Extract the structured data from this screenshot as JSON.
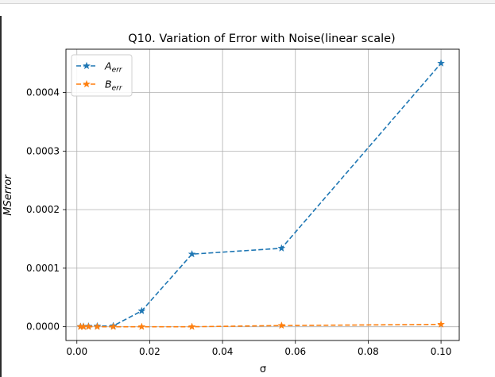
{
  "chart_data": {
    "type": "line",
    "title": "Q10. Variation of Error with Noise(linear scale)",
    "xlabel": "σ",
    "ylabel": "MSerror",
    "xlim": [
      -0.003,
      0.105
    ],
    "ylim": [
      -2.35e-05,
      0.000474
    ],
    "xticks": [
      0.0,
      0.02,
      0.04,
      0.06,
      0.08,
      0.1
    ],
    "xtick_labels": [
      "0.00",
      "0.02",
      "0.04",
      "0.06",
      "0.08",
      "0.10"
    ],
    "yticks": [
      0.0,
      0.0001,
      0.0002,
      0.0003,
      0.0004
    ],
    "ytick_labels": [
      "0.0000",
      "0.0001",
      "0.0002",
      "0.0003",
      "0.0004"
    ],
    "grid": true,
    "legend_position": "top-left",
    "x": [
      0.001,
      0.0018,
      0.0032,
      0.0056,
      0.01,
      0.0178,
      0.0316,
      0.0562,
      0.1
    ],
    "series": [
      {
        "name": "A",
        "name_sub": "err",
        "color": "#1f77b4",
        "linestyle": "dashed",
        "marker": "star",
        "values": [
          3e-07,
          5e-07,
          8e-07,
          1e-06,
          1.5e-06,
          2.7e-05,
          0.000124,
          0.000134,
          0.00045
        ]
      },
      {
        "name": "B",
        "name_sub": "err",
        "color": "#ff7f0e",
        "linestyle": "dashed",
        "marker": "star",
        "values": [
          0.0,
          0.0,
          0.0,
          0.0,
          0.0,
          0.0,
          0.0,
          2e-06,
          4e-06
        ]
      }
    ]
  }
}
